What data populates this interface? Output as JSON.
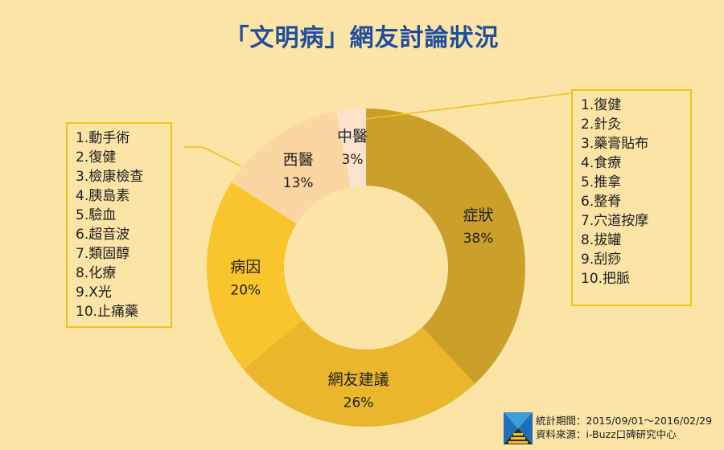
{
  "title": "「文明病」網友討論狀況",
  "chart_data": {
    "type": "pie",
    "donut": true,
    "title": "「文明病」網友討論狀況",
    "slices": [
      {
        "label": "症狀",
        "value": 38,
        "value_label": "38%",
        "color": "#caa02a"
      },
      {
        "label": "網友建議",
        "value": 26,
        "value_label": "26%",
        "color": "#e9b62c"
      },
      {
        "label": "病因",
        "value": 20,
        "value_label": "20%",
        "color": "#f9c52d"
      },
      {
        "label": "西醫",
        "value": 13,
        "value_label": "13%",
        "color": "#fbd6a3"
      },
      {
        "label": "中醫",
        "value": 3,
        "value_label": "3%",
        "color": "#fde3cc"
      }
    ]
  },
  "left_list": {
    "items": [
      "1.動手術",
      "2.復健",
      "3.檢康檢查",
      "4.胰島素",
      "5.驗血",
      "6.超音波",
      "7.類固醇",
      "8.化療",
      "9.X光",
      "10.止痛藥"
    ]
  },
  "right_list": {
    "items": [
      "1.復健",
      "2.針灸",
      "3.藥膏貼布",
      "4.食療",
      "5.推拿",
      "6.整脊",
      "7.穴道按摩",
      "8.拔罐",
      "9.刮痧",
      "10.把脈"
    ]
  },
  "colors": {
    "accent": "#f2c21c",
    "title": "#1f4e9c",
    "background": "#fbe4a6"
  },
  "footer": {
    "period": "統計期間：2015/09/01～2016/02/29",
    "source": "資料來源：i-Buzz口碑研究中心"
  }
}
